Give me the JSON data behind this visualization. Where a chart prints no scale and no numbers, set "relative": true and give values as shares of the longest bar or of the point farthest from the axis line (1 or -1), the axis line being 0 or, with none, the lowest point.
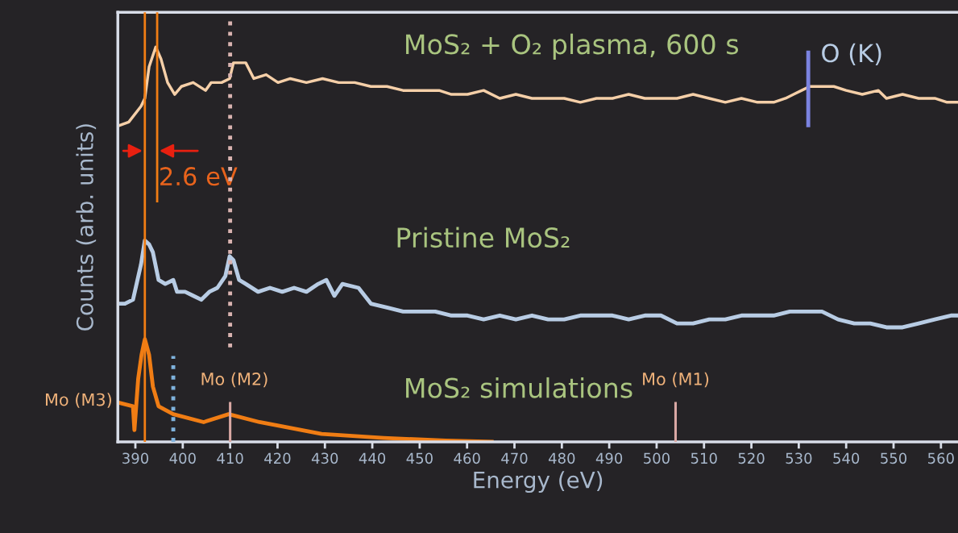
{
  "chart_data": {
    "type": "line",
    "relative": true,
    "xlabel": "Energy (eV)",
    "ylabel": "Counts (arb. units)",
    "xlim": [
      386.3,
      563.6
    ],
    "xticks": [
      390,
      400,
      410,
      420,
      430,
      440,
      450,
      460,
      470,
      480,
      490,
      500,
      510,
      520,
      530,
      540,
      550,
      560
    ],
    "grid": false,
    "legend": false,
    "series": [
      {
        "name": "MoS₂ + O₂ plasma, 600 s",
        "color": "#f5cfa8",
        "x": [
          386.3,
          388.6,
          391.2,
          392.0,
          392.9,
          394.3,
          395.4,
          396.8,
          398.3,
          399.7,
          402.2,
          404.8,
          406.0,
          408.2,
          409.9,
          410.7,
          412.1,
          413.3,
          415.0,
          417.6,
          420.1,
          422.7,
          426.1,
          429.5,
          432.9,
          436.3,
          439.7,
          443.1,
          446.5,
          449.9,
          454.1,
          456.7,
          460.1,
          463.5,
          466.9,
          470.3,
          473.7,
          477.1,
          480.5,
          483.9,
          487.3,
          490.7,
          494.1,
          497.5,
          500.9,
          504.3,
          507.7,
          511.1,
          514.5,
          517.9,
          521.3,
          524.7,
          527.2,
          528.9,
          530.6,
          532.3,
          534.9,
          537.4,
          540.0,
          543.4,
          546.8,
          548.5,
          551.9,
          555.3,
          558.7,
          561.3,
          563.6
        ],
        "values": [
          0.8,
          0.81,
          0.85,
          0.87,
          0.95,
          1.0,
          0.97,
          0.91,
          0.88,
          0.9,
          0.91,
          0.89,
          0.91,
          0.91,
          0.92,
          0.96,
          0.96,
          0.96,
          0.92,
          0.93,
          0.91,
          0.92,
          0.91,
          0.92,
          0.91,
          0.91,
          0.9,
          0.9,
          0.89,
          0.89,
          0.89,
          0.88,
          0.88,
          0.89,
          0.87,
          0.88,
          0.87,
          0.87,
          0.87,
          0.86,
          0.87,
          0.87,
          0.88,
          0.87,
          0.87,
          0.87,
          0.88,
          0.87,
          0.86,
          0.87,
          0.86,
          0.86,
          0.87,
          0.88,
          0.89,
          0.9,
          0.9,
          0.9,
          0.89,
          0.88,
          0.89,
          0.87,
          0.88,
          0.87,
          0.87,
          0.86,
          0.86
        ]
      },
      {
        "name": "Pristine MoS₂",
        "color": "#b8cce4",
        "x": [
          386.3,
          387.8,
          389.5,
          391.2,
          392.0,
          392.9,
          393.7,
          394.9,
          396.3,
          398.0,
          398.8,
          400.5,
          402.2,
          403.9,
          405.6,
          407.3,
          409.0,
          409.9,
          410.7,
          411.9,
          413.3,
          415.9,
          418.4,
          421.0,
          423.5,
          426.1,
          428.6,
          430.3,
          432.0,
          433.7,
          437.1,
          439.7,
          443.1,
          446.5,
          449.9,
          453.3,
          456.7,
          460.1,
          463.5,
          466.9,
          470.3,
          473.7,
          477.1,
          480.5,
          483.9,
          487.3,
          490.7,
          494.1,
          497.5,
          500.9,
          504.3,
          507.7,
          511.1,
          514.5,
          517.9,
          521.3,
          524.7,
          528.1,
          531.5,
          534.9,
          538.3,
          541.7,
          545.1,
          548.5,
          551.9,
          555.3,
          558.7,
          562.1,
          563.6
        ],
        "values": [
          0.35,
          0.35,
          0.36,
          0.45,
          0.51,
          0.5,
          0.48,
          0.41,
          0.4,
          0.41,
          0.38,
          0.38,
          0.37,
          0.36,
          0.38,
          0.39,
          0.42,
          0.47,
          0.46,
          0.41,
          0.4,
          0.38,
          0.39,
          0.38,
          0.39,
          0.38,
          0.4,
          0.41,
          0.37,
          0.4,
          0.39,
          0.35,
          0.34,
          0.33,
          0.33,
          0.33,
          0.32,
          0.32,
          0.31,
          0.32,
          0.31,
          0.32,
          0.31,
          0.31,
          0.32,
          0.32,
          0.32,
          0.31,
          0.32,
          0.32,
          0.3,
          0.3,
          0.31,
          0.31,
          0.32,
          0.32,
          0.32,
          0.33,
          0.33,
          0.33,
          0.31,
          0.3,
          0.3,
          0.29,
          0.29,
          0.3,
          0.31,
          0.32,
          0.32
        ]
      },
      {
        "name": "MoS₂ simulations",
        "color": "#f07d14",
        "x": [
          386.3,
          389.5,
          389.8,
          390.6,
          391.3,
          392.0,
          392.9,
          393.7,
          394.9,
          398.0,
          404.4,
          409.7,
          416.2,
          429.3,
          442.4,
          455.5,
          465.2
        ],
        "values": [
          0.1,
          0.09,
          0.03,
          0.16,
          0.22,
          0.26,
          0.22,
          0.14,
          0.09,
          0.07,
          0.05,
          0.07,
          0.05,
          0.02,
          0.01,
          0.003,
          0
        ]
      }
    ],
    "ref_lines": [
      {
        "axis": "x",
        "value": 392.0,
        "label": "Mo (M3)",
        "color": "#f07d14",
        "line_style": "solid"
      },
      {
        "axis": "x",
        "value": 394.6,
        "label": "2.6 eV",
        "color": "#f07d14",
        "line_style": "solid"
      },
      {
        "axis": "x",
        "value": 410.0,
        "color": "#d9b3b0",
        "line_style": "dotted"
      },
      {
        "axis": "x",
        "value": 398.0,
        "color": "#7fb2dc",
        "line_style": "dotted"
      },
      {
        "axis": "x",
        "value": 410.0,
        "label": "Mo (M2)",
        "color": "#d9a8a4",
        "line_style": "solid"
      },
      {
        "axis": "x",
        "value": 504.0,
        "label": "Mo (M1)",
        "color": "#d9a8a4",
        "line_style": "solid"
      },
      {
        "axis": "x",
        "value": 532.0,
        "label": "O (K)",
        "color": "#7b83e0",
        "line_style": "solid"
      }
    ]
  }
}
